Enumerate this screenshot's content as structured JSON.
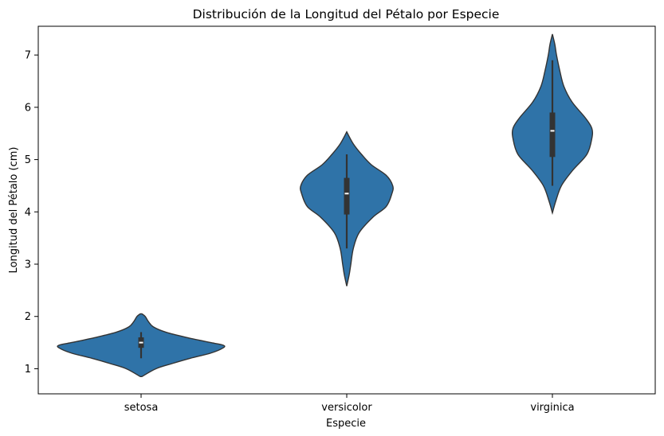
{
  "chart_data": {
    "type": "violin",
    "title": "Distribución de la Longitud del Pétalo por Especie",
    "xlabel": "Especie",
    "ylabel": "Longitud del Pétalo (cm)",
    "ylim": [
      0.52,
      7.55
    ],
    "yticks": [
      "1",
      "2",
      "3",
      "4",
      "5",
      "6",
      "7"
    ],
    "grid": false,
    "color": "#2f73a8",
    "edge_color": "#333333",
    "categories": [
      "setosa",
      "versicolor",
      "virginica"
    ],
    "box_stats": [
      {
        "category": "setosa",
        "min": 1.2,
        "q1": 1.4,
        "median": 1.5,
        "q3": 1.6,
        "max": 1.7
      },
      {
        "category": "versicolor",
        "min": 3.3,
        "q1": 3.95,
        "median": 4.35,
        "q3": 4.65,
        "max": 5.1
      },
      {
        "category": "virginica",
        "min": 4.5,
        "q1": 5.05,
        "median": 5.55,
        "q3": 5.9,
        "max": 6.9
      }
    ],
    "density_profiles": [
      {
        "category": "setosa",
        "points": [
          [
            0.85,
            0.01
          ],
          [
            1.0,
            0.18
          ],
          [
            1.1,
            0.38
          ],
          [
            1.2,
            0.6
          ],
          [
            1.3,
            0.85
          ],
          [
            1.4,
            1.0
          ],
          [
            1.45,
            1.0
          ],
          [
            1.5,
            0.85
          ],
          [
            1.6,
            0.55
          ],
          [
            1.7,
            0.3
          ],
          [
            1.8,
            0.15
          ],
          [
            1.9,
            0.09
          ],
          [
            2.0,
            0.05
          ],
          [
            2.05,
            0.01
          ]
        ]
      },
      {
        "category": "versicolor",
        "points": [
          [
            2.58,
            0.0
          ],
          [
            2.8,
            0.03
          ],
          [
            3.0,
            0.05
          ],
          [
            3.3,
            0.08
          ],
          [
            3.6,
            0.15
          ],
          [
            3.9,
            0.32
          ],
          [
            4.1,
            0.48
          ],
          [
            4.35,
            0.55
          ],
          [
            4.5,
            0.56
          ],
          [
            4.7,
            0.48
          ],
          [
            4.9,
            0.3
          ],
          [
            5.1,
            0.18
          ],
          [
            5.3,
            0.08
          ],
          [
            5.53,
            0.0
          ]
        ]
      },
      {
        "category": "virginica",
        "points": [
          [
            3.98,
            0.0
          ],
          [
            4.2,
            0.04
          ],
          [
            4.5,
            0.11
          ],
          [
            4.8,
            0.25
          ],
          [
            5.1,
            0.42
          ],
          [
            5.4,
            0.48
          ],
          [
            5.6,
            0.48
          ],
          [
            5.8,
            0.4
          ],
          [
            6.1,
            0.24
          ],
          [
            6.4,
            0.14
          ],
          [
            6.7,
            0.09
          ],
          [
            7.0,
            0.05
          ],
          [
            7.2,
            0.03
          ],
          [
            7.4,
            0.0
          ]
        ]
      }
    ]
  }
}
